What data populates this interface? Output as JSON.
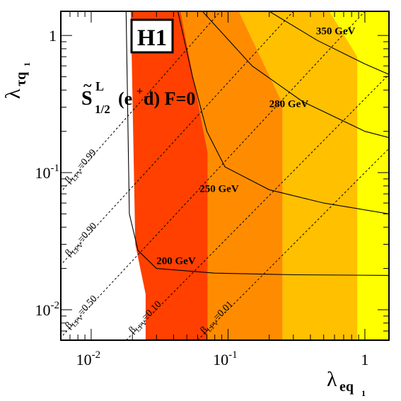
{
  "chart_data": {
    "type": "area",
    "experiment_label": "H1",
    "leptoquark": {
      "symbol": "S",
      "superscript": "L",
      "subscript": "1/2",
      "process": "(e",
      "process_sup": "+",
      "process_end": "d) F=0"
    },
    "xlabel": {
      "main": "λ",
      "sub": "eq",
      "subsub": "1"
    },
    "ylabel": {
      "main": "λ",
      "sub": "τq",
      "subsub": "1"
    },
    "xlim": [
      0.006,
      1.5
    ],
    "ylim": [
      0.006,
      1.5
    ],
    "xscale": "log",
    "yscale": "log",
    "x_ticks": [
      {
        "base": "10",
        "exp": "-2",
        "value": 0.01
      },
      {
        "base": "10",
        "exp": "-1",
        "value": 0.1
      },
      {
        "base": "1",
        "exp": "",
        "value": 1
      }
    ],
    "y_ticks": [
      {
        "base": "10",
        "exp": "-2",
        "value": 0.01
      },
      {
        "base": "10",
        "exp": "-1",
        "value": 0.1
      },
      {
        "base": "1",
        "exp": "",
        "value": 1
      }
    ],
    "regions": [
      {
        "name": "",
        "color": "#ffff00",
        "boundary": [
          [
            0.88,
            0.006
          ],
          [
            0.88,
            0.7
          ],
          [
            0.55,
            1.5
          ],
          [
            1.5,
            1.5
          ],
          [
            1.5,
            0.006
          ]
        ]
      },
      {
        "name": "",
        "color": "#ffc000",
        "boundary": [
          [
            0.25,
            0.006
          ],
          [
            0.25,
            0.32
          ],
          [
            0.12,
            1.5
          ],
          [
            0.55,
            1.5
          ],
          [
            0.88,
            0.7
          ],
          [
            0.88,
            0.006
          ]
        ]
      },
      {
        "name": "",
        "color": "#ff8c00",
        "boundary": [
          [
            0.071,
            0.006
          ],
          [
            0.071,
            0.14
          ],
          [
            0.045,
            1.5
          ],
          [
            0.12,
            1.5
          ],
          [
            0.25,
            0.32
          ],
          [
            0.25,
            0.006
          ]
        ]
      },
      {
        "name": "",
        "color": "#ff4000",
        "boundary": [
          [
            0.025,
            0.006
          ],
          [
            0.025,
            0.013
          ],
          [
            0.021,
            0.03
          ],
          [
            0.0195,
            1.5
          ],
          [
            0.045,
            1.5
          ],
          [
            0.071,
            0.14
          ],
          [
            0.071,
            0.006
          ]
        ]
      }
    ],
    "mass_contours": [
      {
        "label": "200 GeV",
        "label_at": [
          0.03,
          0.0215
        ],
        "points": [
          [
            0.018,
            1.5
          ],
          [
            0.019,
            0.05
          ],
          [
            0.022,
            0.027
          ],
          [
            0.03,
            0.02
          ],
          [
            0.08,
            0.0185
          ],
          [
            0.3,
            0.018
          ],
          [
            1.5,
            0.0178
          ]
        ]
      },
      {
        "label": "250 GeV",
        "label_at": [
          0.062,
          0.072
        ],
        "points": [
          [
            0.043,
            1.5
          ],
          [
            0.055,
            0.5
          ],
          [
            0.07,
            0.2
          ],
          [
            0.095,
            0.11
          ],
          [
            0.2,
            0.075
          ],
          [
            0.5,
            0.06
          ],
          [
            1.5,
            0.05
          ]
        ]
      },
      {
        "label": "280 GeV",
        "label_at": [
          0.2,
          0.3
        ],
        "points": [
          [
            0.065,
            1.5
          ],
          [
            0.15,
            0.6
          ],
          [
            0.35,
            0.33
          ],
          [
            1,
            0.2
          ],
          [
            1.5,
            0.18
          ]
        ]
      },
      {
        "label": "350 GeV",
        "label_at": [
          0.44,
          1.02
        ],
        "points": [
          [
            0.2,
            1.5
          ],
          [
            0.45,
            0.92
          ],
          [
            1,
            0.62
          ],
          [
            1.5,
            0.52
          ]
        ]
      }
    ],
    "beta_lines": [
      {
        "label": "β",
        "sub": "LFV",
        "value": "=0.99",
        "x0": 0.0062,
        "y0": 0.075,
        "x1": 0.088,
        "y1": 1.5
      },
      {
        "label": "β",
        "sub": "LFV",
        "value": "=0.90",
        "x0": 0.0062,
        "y0": 0.022,
        "x1": 0.3,
        "y1": 1.5
      },
      {
        "label": "β",
        "sub": "LFV",
        "value": "=0.50",
        "x0": 0.0062,
        "y0": 0.0065,
        "x1": 1.0,
        "y1": 1.5
      },
      {
        "label": "β",
        "sub": "LFV",
        "value": "=0.10",
        "x0": 0.018,
        "y0": 0.006,
        "x1": 1.5,
        "y1": 0.52
      },
      {
        "label": "β",
        "sub": "LFV",
        "value": "=0.01",
        "x0": 0.06,
        "y0": 0.006,
        "x1": 1.5,
        "y1": 0.15
      }
    ]
  }
}
